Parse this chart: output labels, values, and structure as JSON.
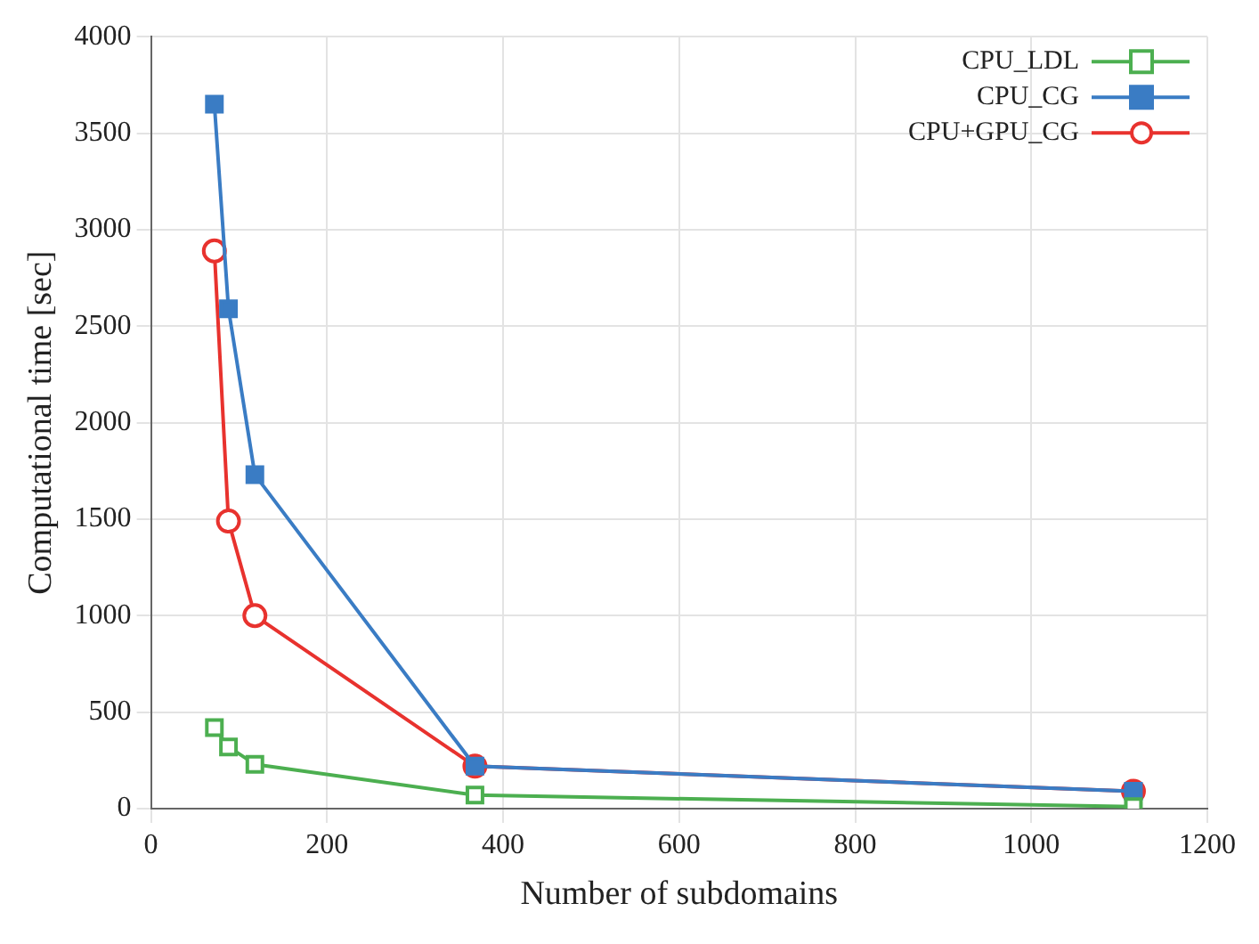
{
  "chart_data": {
    "type": "line",
    "xlabel": "Number of subdomains",
    "ylabel": "Computational time [sec]",
    "xlim": [
      0,
      1200
    ],
    "xticks": [
      0,
      200,
      400,
      600,
      800,
      1000,
      1200
    ],
    "ylim": [
      0,
      4000
    ],
    "yticks": [
      0,
      500,
      1000,
      1500,
      2000,
      2500,
      3000,
      3500,
      4000
    ],
    "grid": true,
    "legend": "top right",
    "x": [
      72,
      88,
      118,
      368,
      1116
    ],
    "series": [
      {
        "name": "CPU_LDL",
        "color": "#4caf50",
        "marker": "square",
        "values": [
          420,
          320,
          230,
          70,
          10
        ]
      },
      {
        "name": "CPU_CG",
        "color": "#3a7cc4",
        "marker": "square",
        "values": [
          3650,
          2590,
          1730,
          220,
          90
        ]
      },
      {
        "name": "CPU+GPU_CG",
        "color": "#e8322e",
        "marker": "circle",
        "values": [
          2890,
          1490,
          1000,
          220,
          90
        ]
      }
    ]
  }
}
